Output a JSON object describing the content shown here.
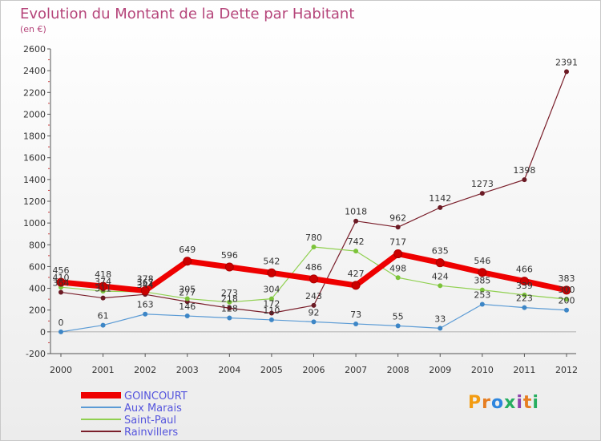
{
  "chart_data": {
    "type": "line",
    "title": "Evolution du Montant de la Dette par Habitant",
    "subtitle": "(en €)",
    "categories": [
      "2000",
      "2001",
      "2002",
      "2003",
      "2004",
      "2005",
      "2006",
      "2007",
      "2008",
      "2009",
      "2010",
      "2011",
      "2012"
    ],
    "ylim": [
      -200,
      2600
    ],
    "yticks": [
      -200,
      0,
      200,
      400,
      600,
      800,
      1000,
      1200,
      1400,
      1600,
      1800,
      2000,
      2200,
      2400,
      2600
    ],
    "grid": false,
    "legend_position": "bottom-left",
    "series": [
      {
        "name": "Rainvillers",
        "color": "#7a1f2b",
        "marker": "#6b1a24",
        "width": 1.2,
        "values": [
          364,
          311,
          344,
          277,
          218,
          172,
          243,
          1018,
          962,
          1142,
          1273,
          1398,
          2391
        ],
        "labels": [
          "364",
          "311",
          "344",
          "277",
          "218",
          "172",
          "243",
          "1018",
          "962",
          "1142",
          "1273",
          "1398",
          "2391"
        ]
      },
      {
        "name": "Saint-Paul",
        "color": "#90d050",
        "marker": "#7cc33a",
        "width": 1.2,
        "values": [
          410,
          374,
          367,
          305,
          273,
          304,
          780,
          742,
          498,
          424,
          385,
          339,
          300
        ],
        "labels": [
          "410",
          "374",
          "367",
          "305",
          "273",
          "304",
          "780",
          "742",
          "498",
          "424",
          "385",
          "339",
          "300"
        ]
      },
      {
        "name": "Aux Marais",
        "color": "#5b9bd5",
        "marker": "#3d86c6",
        "width": 1.2,
        "values": [
          0,
          61,
          163,
          146,
          128,
          110,
          92,
          73,
          55,
          33,
          253,
          223,
          200
        ],
        "labels": [
          "0",
          "61",
          "163",
          "146",
          "128",
          "110",
          "92",
          "73",
          "55",
          "33",
          "253",
          "223",
          "200"
        ]
      },
      {
        "name": "GOINCOURT",
        "color": "#ee0000",
        "marker": "#cc0000",
        "width": 7,
        "values": [
          456,
          418,
          378,
          649,
          596,
          542,
          486,
          427,
          717,
          635,
          546,
          466,
          383
        ],
        "labels": [
          "456",
          "418",
          "378",
          "649",
          "596",
          "542",
          "486",
          "427",
          "717",
          "635",
          "546",
          "466",
          "383"
        ]
      }
    ],
    "legend": [
      "GOINCOURT",
      "Aux Marais",
      "Saint-Paul",
      "Rainvillers"
    ]
  },
  "colors": {
    "title": "#b5457a",
    "legend_text": "#5555dd"
  },
  "logo": {
    "text": "Proxiti"
  }
}
